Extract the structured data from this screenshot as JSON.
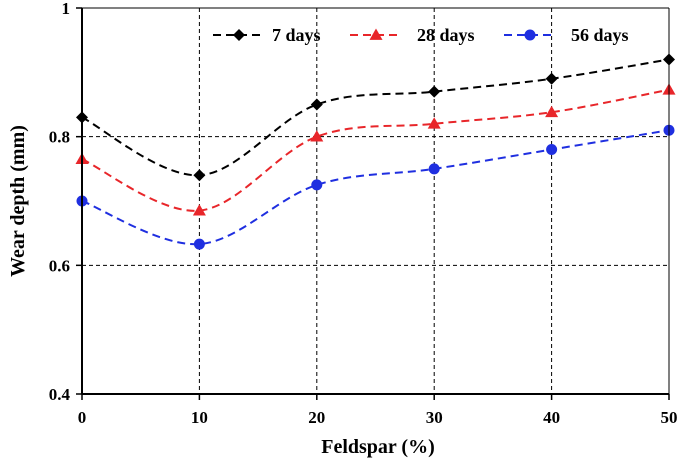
{
  "chart_data": {
    "type": "line",
    "xlabel": "Feldspar (%)",
    "ylabel": "Wear depth (mm)",
    "x": [
      0,
      10,
      20,
      30,
      40,
      50
    ],
    "xlim": [
      0,
      50
    ],
    "ylim": [
      0.4,
      1.0
    ],
    "xticks": [
      0,
      10,
      20,
      30,
      40,
      50
    ],
    "yticks": [
      0.4,
      0.6,
      0.8,
      1.0
    ],
    "xtick_labels": [
      "0",
      "10",
      "20",
      "30",
      "40",
      "50"
    ],
    "ytick_labels": [
      "0.4",
      "0.6",
      "0.8",
      "1"
    ],
    "grid": true,
    "legend_position": "top-right",
    "series": [
      {
        "name": "7 days",
        "marker": "diamond",
        "color": "#000000",
        "values": [
          0.83,
          0.74,
          0.85,
          0.87,
          0.89,
          0.92
        ]
      },
      {
        "name": "28 days",
        "marker": "triangle",
        "color": "#e8262a",
        "values": [
          0.765,
          0.685,
          0.8,
          0.82,
          0.838,
          0.873
        ]
      },
      {
        "name": "56 days",
        "marker": "circle",
        "color": "#1f2fe0",
        "values": [
          0.7,
          0.633,
          0.725,
          0.75,
          0.78,
          0.81
        ]
      }
    ]
  }
}
